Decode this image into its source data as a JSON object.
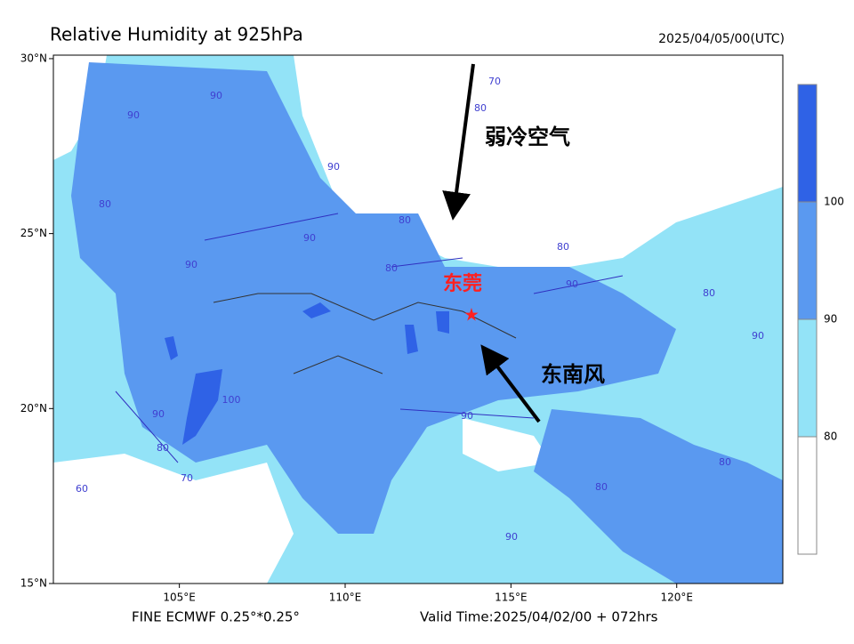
{
  "header": {
    "title": "Relative Humidity at 925hPa",
    "time": "2025/04/05/00(UTC)"
  },
  "map": {
    "lonlim": [
      101.2,
      123.2
    ],
    "latlim": [
      15,
      30.1
    ],
    "lat_ticks": [
      {
        "value": 30,
        "label": "30°N"
      },
      {
        "value": 25,
        "label": "25°N"
      },
      {
        "value": 20,
        "label": "20°N"
      },
      {
        "value": 15,
        "label": "15°N"
      }
    ],
    "lon_ticks": [
      {
        "value": 105,
        "label": "105°E"
      },
      {
        "value": 110,
        "label": "110°E"
      },
      {
        "value": 115,
        "label": "115°E"
      },
      {
        "value": 120,
        "label": "120°E"
      }
    ],
    "contour_labels": [
      "90",
      "80",
      "90",
      "90",
      "80",
      "90",
      "100",
      "90",
      "80",
      "70",
      "60",
      "90",
      "80",
      "90",
      "90",
      "80",
      "80",
      "70",
      "80",
      "80",
      "90",
      "90",
      "80"
    ]
  },
  "annotations": {
    "cold_air": "弱冷空气",
    "city": "东莞",
    "wind": "东南风"
  },
  "colorbar": {
    "range": [
      70,
      110
    ],
    "levels": [
      {
        "from": 100,
        "to": 110,
        "color": "#2f62e6"
      },
      {
        "from": 90,
        "to": 100,
        "color": "#5a99f0"
      },
      {
        "from": 80,
        "to": 90,
        "color": "#93e3f7"
      },
      {
        "from": 70,
        "to": 80,
        "color": "#ffffff"
      }
    ],
    "ticks": [
      100,
      90,
      80
    ]
  },
  "footer": {
    "model": "FINE ECMWF 0.25°*0.25°",
    "valid": "Valid Time:2025/04/02/00 + 072hrs"
  }
}
